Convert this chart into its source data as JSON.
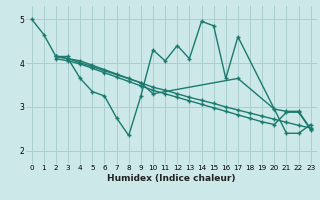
{
  "xlabel": "Humidex (Indice chaleur)",
  "bg_color": "#cce8e8",
  "line_color": "#1a7a6e",
  "grid_color": "#aacfcf",
  "xlim": [
    -0.5,
    23.5
  ],
  "ylim": [
    1.7,
    5.3
  ],
  "xtick_labels": [
    "0",
    "1",
    "2",
    "3",
    "4",
    "5",
    "6",
    "7",
    "8",
    "9",
    "10",
    "11",
    "12",
    "13",
    "14",
    "15",
    "16",
    "17",
    "18",
    "19",
    "20",
    "21",
    "22",
    "23"
  ],
  "xticks": [
    0,
    1,
    2,
    3,
    4,
    5,
    6,
    7,
    8,
    9,
    10,
    11,
    12,
    13,
    14,
    15,
    16,
    17,
    18,
    19,
    20,
    21,
    22,
    23
  ],
  "yticks": [
    2,
    3,
    4,
    5
  ],
  "series": [
    {
      "x": [
        0,
        1,
        2,
        3,
        3,
        4,
        5,
        6,
        7,
        8,
        9,
        10,
        11,
        12,
        13,
        14,
        15,
        16,
        17,
        20,
        21,
        22,
        23
      ],
      "y": [
        5.0,
        4.65,
        4.15,
        4.15,
        4.1,
        3.65,
        3.35,
        3.25,
        2.75,
        2.35,
        3.25,
        4.3,
        4.05,
        4.4,
        4.1,
        4.95,
        4.85,
        3.65,
        4.6,
        2.95,
        2.4,
        2.4,
        2.6
      ]
    },
    {
      "x": [
        2,
        3,
        4,
        5,
        6,
        7,
        8,
        9,
        10,
        11,
        12,
        13,
        14,
        15,
        16,
        17,
        18,
        19,
        20,
        21,
        22,
        23
      ],
      "y": [
        4.15,
        4.1,
        4.05,
        3.95,
        3.85,
        3.75,
        3.65,
        3.55,
        3.45,
        3.38,
        3.3,
        3.22,
        3.15,
        3.08,
        3.0,
        2.93,
        2.86,
        2.79,
        2.72,
        2.65,
        2.58,
        2.52
      ]
    },
    {
      "x": [
        2,
        3,
        4,
        5,
        6,
        7,
        8,
        9,
        10,
        11,
        12,
        13,
        14,
        15,
        16,
        17,
        18,
        19,
        20,
        21,
        22,
        23
      ],
      "y": [
        4.1,
        4.05,
        3.98,
        3.88,
        3.78,
        3.68,
        3.58,
        3.48,
        3.38,
        3.3,
        3.22,
        3.14,
        3.06,
        2.98,
        2.9,
        2.82,
        2.74,
        2.66,
        2.6,
        2.88,
        2.88,
        2.48
      ]
    },
    {
      "x": [
        2,
        3,
        9,
        10,
        17,
        20,
        21,
        22,
        23
      ],
      "y": [
        4.15,
        4.1,
        3.55,
        3.3,
        3.65,
        2.95,
        2.9,
        2.9,
        2.5
      ]
    }
  ]
}
